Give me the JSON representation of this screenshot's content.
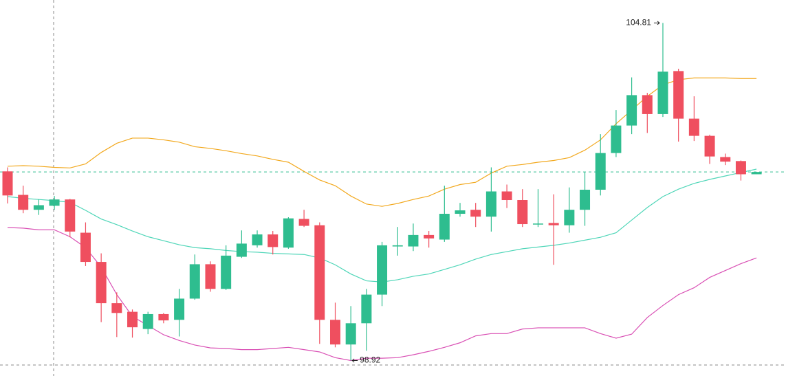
{
  "chart_data": {
    "type": "candlestick",
    "ylim": [
      98.65,
      105.21
    ],
    "up_color": "#2ebd8f",
    "down_color": "#ef4f5f",
    "open": [
      102.22,
      101.81,
      101.55,
      101.62,
      101.73,
      101.15,
      100.64,
      99.92,
      99.77,
      99.47,
      99.73,
      99.63,
      100.0,
      100.6,
      100.17,
      100.73,
      100.93,
      101.12,
      100.89,
      101.39,
      101.28,
      99.63,
      99.2,
      99.57,
      100.07,
      100.91,
      100.91,
      101.11,
      101.03,
      101.48,
      101.55,
      101.43,
      101.87,
      101.72,
      101.3,
      101.32,
      101.28,
      101.55,
      101.9,
      102.54,
      103.02,
      103.55,
      103.22,
      103.97,
      103.14,
      102.84,
      102.47,
      102.4,
      102.17
    ],
    "high": [
      102.29,
      101.97,
      101.73,
      101.79,
      101.74,
      101.33,
      100.79,
      100.11,
      99.81,
      99.77,
      99.75,
      100.17,
      100.77,
      100.65,
      100.93,
      101.19,
      101.19,
      101.18,
      101.42,
      101.55,
      101.33,
      99.93,
      99.87,
      100.17,
      100.99,
      101.25,
      101.31,
      101.18,
      101.97,
      101.67,
      101.67,
      102.29,
      101.99,
      101.91,
      101.91,
      101.82,
      101.94,
      102.21,
      102.87,
      103.29,
      103.86,
      103.59,
      104.81,
      104.01,
      103.53,
      102.86,
      102.53,
      102.41,
      102.21
    ],
    "low": [
      101.66,
      101.49,
      101.46,
      101.55,
      101.07,
      100.57,
      99.59,
      99.33,
      99.32,
      99.38,
      99.57,
      99.34,
      99.98,
      100.12,
      100.15,
      100.71,
      100.89,
      100.77,
      100.87,
      101.25,
      99.21,
      99.15,
      98.92,
      99.09,
      99.87,
      100.75,
      100.83,
      100.89,
      100.99,
      101.43,
      101.25,
      101.17,
      101.58,
      101.25,
      101.25,
      100.59,
      101.15,
      101.27,
      101.8,
      102.47,
      102.87,
      102.89,
      103.17,
      102.74,
      102.75,
      102.35,
      102.33,
      102.06,
      102.17
    ],
    "close": [
      101.8,
      101.55,
      101.63,
      101.73,
      101.17,
      100.64,
      99.92,
      99.75,
      99.5,
      99.73,
      99.62,
      100.0,
      100.6,
      100.17,
      100.75,
      100.96,
      101.12,
      100.9,
      101.4,
      101.27,
      99.63,
      99.2,
      99.57,
      100.07,
      100.93,
      100.93,
      101.11,
      101.05,
      101.48,
      101.54,
      101.43,
      101.87,
      101.72,
      101.3,
      101.31,
      101.28,
      101.55,
      101.9,
      102.54,
      103.02,
      103.55,
      103.22,
      103.96,
      103.14,
      102.84,
      102.48,
      102.39,
      102.17,
      102.21
    ],
    "bands": [
      {
        "color": "#f2a81d",
        "values": [
          102.31,
          102.32,
          102.31,
          102.29,
          102.28,
          102.35,
          102.55,
          102.71,
          102.8,
          102.8,
          102.77,
          102.73,
          102.65,
          102.62,
          102.58,
          102.53,
          102.49,
          102.43,
          102.38,
          102.22,
          102.07,
          101.97,
          101.79,
          101.65,
          101.61,
          101.66,
          101.73,
          101.79,
          101.91,
          101.99,
          102.03,
          102.19,
          102.31,
          102.34,
          102.38,
          102.41,
          102.46,
          102.59,
          102.77,
          103.05,
          103.29,
          103.53,
          103.73,
          103.82,
          103.85,
          103.85,
          103.85,
          103.84,
          103.84
        ]
      },
      {
        "color": "#4fd6b8",
        "values": [
          101.78,
          101.75,
          101.73,
          101.71,
          101.68,
          101.54,
          101.39,
          101.29,
          101.18,
          101.08,
          101.01,
          100.94,
          100.89,
          100.87,
          100.84,
          100.82,
          100.81,
          100.79,
          100.78,
          100.77,
          100.71,
          100.59,
          100.43,
          100.31,
          100.29,
          100.33,
          100.39,
          100.43,
          100.51,
          100.59,
          100.69,
          100.77,
          100.82,
          100.87,
          100.9,
          100.93,
          100.97,
          101.02,
          101.07,
          101.15,
          101.37,
          101.59,
          101.78,
          101.91,
          102.01,
          102.08,
          102.14,
          102.2,
          102.26
        ]
      },
      {
        "color": "#d94fb4",
        "values": [
          101.24,
          101.23,
          101.2,
          101.2,
          101.08,
          100.89,
          100.55,
          100.07,
          99.69,
          99.53,
          99.37,
          99.27,
          99.19,
          99.14,
          99.13,
          99.11,
          99.11,
          99.13,
          99.15,
          99.11,
          99.07,
          98.97,
          98.92,
          98.96,
          98.96,
          98.97,
          99.02,
          99.08,
          99.15,
          99.23,
          99.35,
          99.39,
          99.39,
          99.47,
          99.49,
          99.49,
          99.49,
          99.49,
          99.39,
          99.31,
          99.38,
          99.67,
          99.88,
          100.07,
          100.19,
          100.37,
          100.49,
          100.61,
          100.71
        ]
      }
    ]
  }
}
